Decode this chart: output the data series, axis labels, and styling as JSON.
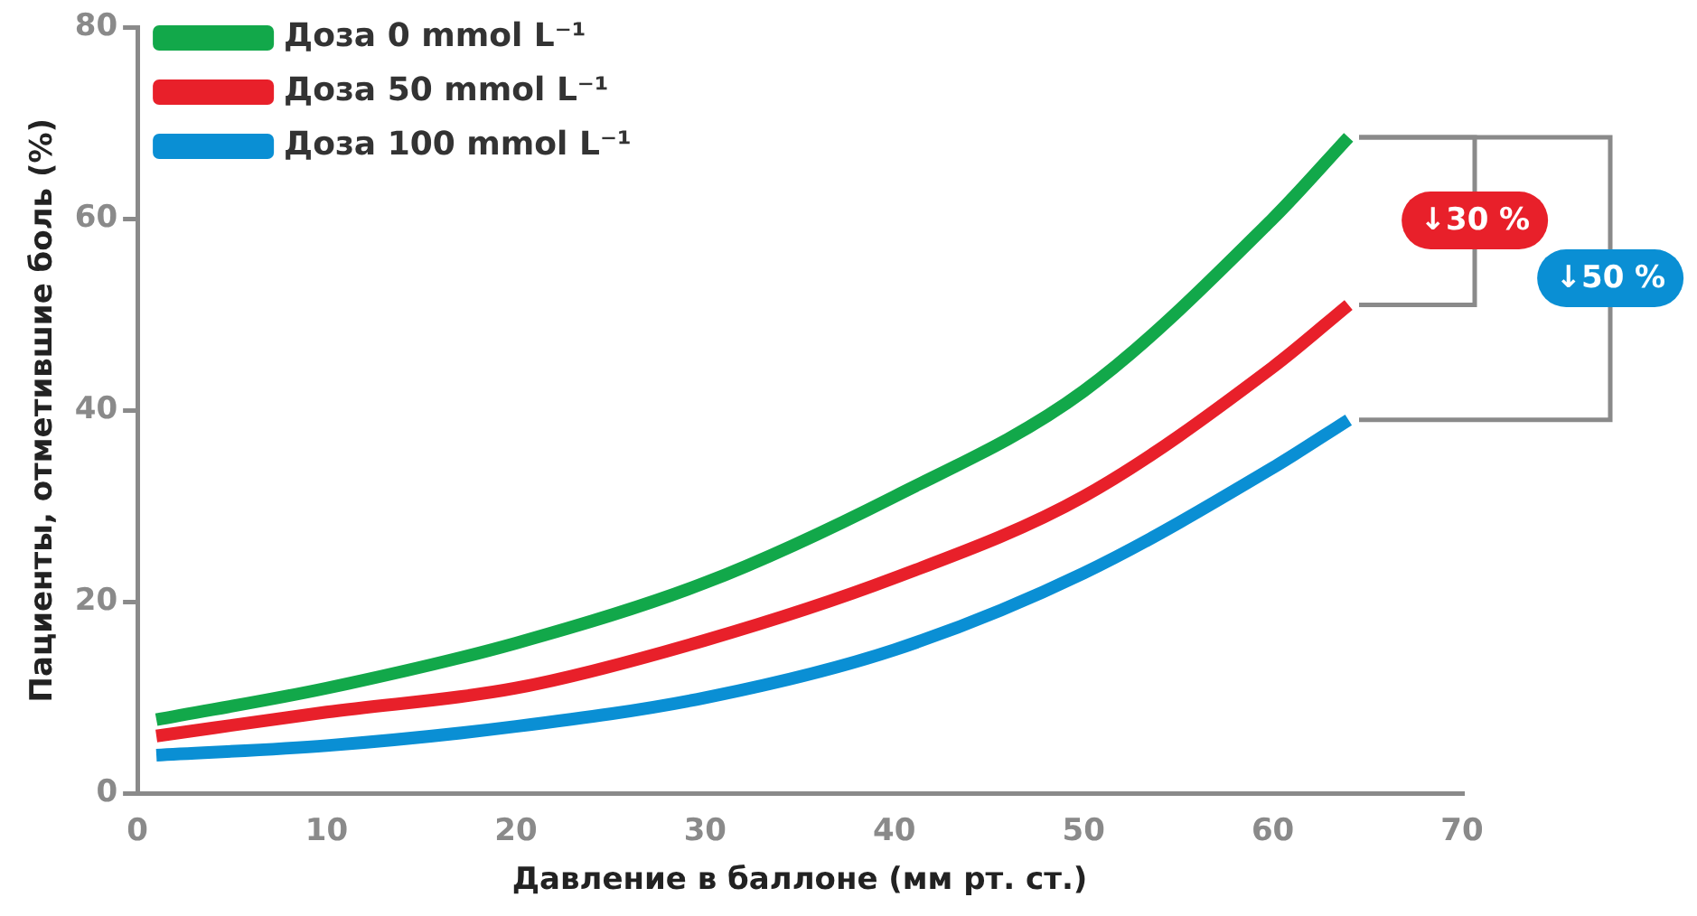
{
  "chart_data": {
    "type": "line",
    "xlabel": "Давление в баллоне (мм рт. ст.)",
    "ylabel": "Пациенты, отметившие боль (%)",
    "x": [
      1,
      10,
      20,
      30,
      40,
      50,
      60,
      64
    ],
    "series": [
      {
        "name": "Доза 0 mmol L⁻¹",
        "color": "#12a84a",
        "values": [
          7.7,
          11,
          15.7,
          22,
          31,
          42,
          60,
          68.5
        ]
      },
      {
        "name": "Доза 50 mmol L⁻¹",
        "color": "#e8202a",
        "values": [
          6,
          8.5,
          11,
          16,
          22.5,
          31,
          44.5,
          51
        ]
      },
      {
        "name": "Доза 100 mmol L⁻¹",
        "color": "#0a8fd4",
        "values": [
          4,
          5,
          7,
          10,
          15,
          23,
          34,
          39
        ]
      }
    ],
    "xlim": [
      0,
      70
    ],
    "xticks": [
      0,
      10,
      20,
      30,
      40,
      50,
      60,
      70
    ],
    "ylim": [
      0,
      80
    ],
    "yticks": [
      0,
      20,
      40,
      60,
      80
    ],
    "grid": false,
    "legend": "top left",
    "marker": "none",
    "line_style": "solid",
    "annotations": [
      "↓30 %",
      "↓50 %"
    ]
  }
}
